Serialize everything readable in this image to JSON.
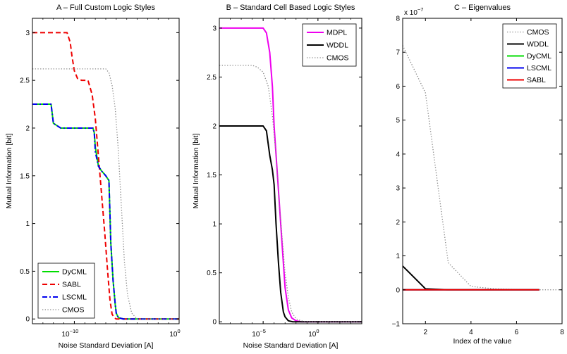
{
  "chart_data": [
    {
      "type": "line",
      "title": "A – Full Custom Logic Styles",
      "xlabel": "Noise Standard Deviation [A]",
      "ylabel": "Mutual Information [bit]",
      "xscale": "log",
      "xlim": [
        1e-14,
        1
      ],
      "ylim": [
        -0.05,
        3.15
      ],
      "xticks": [
        {
          "v": 1e-10,
          "label": "10",
          "exp": "−10"
        },
        {
          "v": 1,
          "label": "10",
          "exp": "0"
        }
      ],
      "yticks": [
        {
          "v": 0,
          "label": "0"
        },
        {
          "v": 0.5,
          "label": "0.5"
        },
        {
          "v": 1,
          "label": "1"
        },
        {
          "v": 1.5,
          "label": "1.5"
        },
        {
          "v": 2,
          "label": "2"
        },
        {
          "v": 2.5,
          "label": "2.5"
        },
        {
          "v": 3,
          "label": "3"
        }
      ],
      "legend_position": "bottom-left",
      "series": [
        {
          "name": "DyCML",
          "color": "#00dd00",
          "dash": "solid",
          "width": 2,
          "x": [
            1e-14,
            3e-13,
            6e-13,
            1e-12,
            5e-12,
            1e-11,
            1e-10,
            1e-09,
            3e-09,
            6e-09,
            8e-09,
            1e-08,
            2e-08,
            4e-08,
            7e-08,
            1e-07,
            2e-07,
            2.5e-07,
            3e-07,
            5e-07,
            8e-07,
            1e-06,
            1.5e-06,
            2e-06,
            5e-06,
            1e-05,
            0.001,
            1
          ],
          "y": [
            2.25,
            2.25,
            2.25,
            2.05,
            2.0,
            2.0,
            2.0,
            2.0,
            2.0,
            2.0,
            1.95,
            1.8,
            1.6,
            1.55,
            1.52,
            1.5,
            1.45,
            1.1,
            0.8,
            0.4,
            0.15,
            0.06,
            0.02,
            0.01,
            0.0,
            0.0,
            0.0,
            0.0
          ]
        },
        {
          "name": "SABL",
          "color": "#ee0000",
          "dash": "dashed",
          "width": 2,
          "x": [
            1e-14,
            1e-12,
            1e-11,
            2e-11,
            4e-11,
            6e-11,
            1e-10,
            2e-10,
            5e-10,
            2e-09,
            5e-09,
            1e-08,
            2e-08,
            4e-08,
            8e-08,
            1.5e-07,
            2.5e-07,
            4e-07,
            7e-07,
            1e-06,
            1e-05,
            1
          ],
          "y": [
            3.0,
            3.0,
            3.0,
            3.0,
            2.9,
            2.75,
            2.6,
            2.52,
            2.5,
            2.5,
            2.35,
            2.1,
            1.7,
            1.3,
            0.9,
            0.5,
            0.2,
            0.05,
            0.01,
            0.0,
            0.0,
            0.0
          ]
        },
        {
          "name": "LSCML",
          "color": "#0000ee",
          "dash": "dashdot",
          "width": 2,
          "x": [
            1e-14,
            3e-13,
            6e-13,
            1e-12,
            5e-12,
            1e-11,
            1e-10,
            1e-09,
            3e-09,
            6e-09,
            8e-09,
            1e-08,
            2e-08,
            4e-08,
            7e-08,
            1e-07,
            2e-07,
            2.5e-07,
            3e-07,
            5e-07,
            8e-07,
            1e-06,
            1.5e-06,
            2e-06,
            5e-06,
            1e-05,
            0.001,
            1
          ],
          "y": [
            2.25,
            2.25,
            2.25,
            2.05,
            2.0,
            2.0,
            2.0,
            2.0,
            2.0,
            2.0,
            1.95,
            1.75,
            1.6,
            1.55,
            1.52,
            1.5,
            1.45,
            1.1,
            0.8,
            0.4,
            0.15,
            0.06,
            0.02,
            0.01,
            0.0,
            0.0,
            0.0,
            0.0
          ]
        },
        {
          "name": "CMOS",
          "color": "#888888",
          "dash": "dotted",
          "width": 1.3,
          "x": [
            1e-14,
            1e-11,
            1e-09,
            1e-08,
            3e-08,
            1e-07,
            2e-07,
            4e-07,
            8e-07,
            1.5e-06,
            3e-06,
            6e-06,
            1.2e-05,
            3e-05,
            0.0001,
            0.001,
            1
          ],
          "y": [
            2.62,
            2.62,
            2.62,
            2.62,
            2.62,
            2.62,
            2.58,
            2.45,
            2.2,
            1.8,
            1.2,
            0.6,
            0.25,
            0.06,
            0.0,
            0.0,
            0.0
          ]
        }
      ]
    },
    {
      "type": "line",
      "title": "B – Standard Cell Based Logic Styles",
      "xlabel": "Noise Standard Deviation [A]",
      "ylabel": "Mutual Information [bit]",
      "xscale": "log",
      "xlim": [
        1e-09,
        10000.0
      ],
      "ylim": [
        -0.02,
        3.1
      ],
      "xticks": [
        {
          "v": 1e-05,
          "label": "10",
          "exp": "−5"
        },
        {
          "v": 1,
          "label": "10",
          "exp": "0"
        }
      ],
      "yticks": [
        {
          "v": 0,
          "label": "0"
        },
        {
          "v": 0.5,
          "label": "0.5"
        },
        {
          "v": 1,
          "label": "1"
        },
        {
          "v": 1.5,
          "label": "1.5"
        },
        {
          "v": 2,
          "label": "2"
        },
        {
          "v": 2.5,
          "label": "2.5"
        },
        {
          "v": 3,
          "label": "3"
        }
      ],
      "legend_position": "top-right",
      "series": [
        {
          "name": "MDPL",
          "color": "#ee00ee",
          "dash": "solid",
          "width": 2,
          "x": [
            1e-09,
            1e-06,
            1e-05,
            2e-05,
            4e-05,
            7e-05,
            0.0001,
            0.0002,
            0.0004,
            0.0007,
            0.001,
            0.002,
            0.004,
            0.01,
            0.03,
            1,
            10000.0
          ],
          "y": [
            3.0,
            3.0,
            3.0,
            2.95,
            2.75,
            2.4,
            2.0,
            1.5,
            1.0,
            0.6,
            0.35,
            0.12,
            0.04,
            0.01,
            0.0,
            0.0,
            0.0
          ]
        },
        {
          "name": "WDDL",
          "color": "#000000",
          "dash": "solid",
          "width": 2,
          "x": [
            1e-09,
            1e-06,
            1e-05,
            2e-05,
            4e-05,
            7e-05,
            0.0001,
            0.00015,
            0.00025,
            0.0004,
            0.0007,
            0.001,
            0.002,
            0.005,
            0.01,
            1,
            10000.0
          ],
          "y": [
            2.0,
            2.0,
            2.0,
            1.95,
            1.7,
            1.55,
            1.4,
            1.0,
            0.6,
            0.3,
            0.1,
            0.05,
            0.01,
            0.0,
            0.0,
            0.0,
            0.0
          ]
        },
        {
          "name": "CMOS",
          "color": "#888888",
          "dash": "dotted",
          "width": 1.3,
          "x": [
            1e-09,
            1e-07,
            1e-06,
            3e-06,
            1e-05,
            3e-05,
            7e-05,
            0.00015,
            0.0003,
            0.0006,
            0.001,
            0.002,
            0.004,
            0.01,
            0.03,
            0.1,
            1,
            10000.0
          ],
          "y": [
            2.62,
            2.62,
            2.62,
            2.6,
            2.55,
            2.4,
            2.1,
            1.7,
            1.2,
            0.8,
            0.5,
            0.25,
            0.1,
            0.03,
            0.01,
            0.0,
            0.0,
            0.0
          ]
        }
      ]
    },
    {
      "type": "line",
      "title": "C – Eigenvalues",
      "xlabel": "Index of the value",
      "ylabel": "",
      "exponent_label": {
        "base": "x 10",
        "exp": "−7"
      },
      "xscale": "linear",
      "xlim": [
        1,
        8
      ],
      "ylim": [
        -1,
        8
      ],
      "xticks": [
        {
          "v": 2,
          "label": "2"
        },
        {
          "v": 4,
          "label": "4"
        },
        {
          "v": 6,
          "label": "6"
        },
        {
          "v": 8,
          "label": "8"
        }
      ],
      "yticks": [
        {
          "v": -1,
          "label": "−1"
        },
        {
          "v": 0,
          "label": "0"
        },
        {
          "v": 1,
          "label": "1"
        },
        {
          "v": 2,
          "label": "2"
        },
        {
          "v": 3,
          "label": "3"
        },
        {
          "v": 4,
          "label": "4"
        },
        {
          "v": 5,
          "label": "5"
        },
        {
          "v": 6,
          "label": "6"
        },
        {
          "v": 7,
          "label": "7"
        },
        {
          "v": 8,
          "label": "8"
        }
      ],
      "legend_position": "top-right",
      "series": [
        {
          "name": "CMOS",
          "color": "#888888",
          "dash": "dotted",
          "width": 1.3,
          "x": [
            1,
            2,
            3,
            4,
            5,
            6,
            7,
            8
          ],
          "y": [
            7.2,
            5.8,
            0.8,
            0.1,
            0.03,
            0.01,
            0.0,
            0.0
          ]
        },
        {
          "name": "WDDL",
          "color": "#000000",
          "dash": "solid",
          "width": 2,
          "x": [
            1,
            2,
            3,
            4,
            5,
            6,
            7
          ],
          "y": [
            0.7,
            0.03,
            0.0,
            0.0,
            0.0,
            0.0,
            0.0
          ]
        },
        {
          "name": "DyCML",
          "color": "#00dd00",
          "dash": "solid",
          "width": 2,
          "x": [
            1,
            2,
            3,
            4,
            5,
            6,
            7
          ],
          "y": [
            0.0,
            0.0,
            0.0,
            0.0,
            0.0,
            0.0,
            0.0
          ]
        },
        {
          "name": "LSCML",
          "color": "#0000ee",
          "dash": "solid",
          "width": 2,
          "x": [
            1,
            2,
            3,
            4,
            5,
            6,
            7
          ],
          "y": [
            0.0,
            0.0,
            0.0,
            0.0,
            0.0,
            0.0,
            0.0
          ]
        },
        {
          "name": "SABL",
          "color": "#ee0000",
          "dash": "solid",
          "width": 2,
          "x": [
            1,
            2,
            3,
            4,
            5,
            6,
            7
          ],
          "y": [
            0.0,
            0.0,
            0.0,
            0.0,
            0.0,
            0.0,
            0.0
          ]
        }
      ]
    }
  ]
}
